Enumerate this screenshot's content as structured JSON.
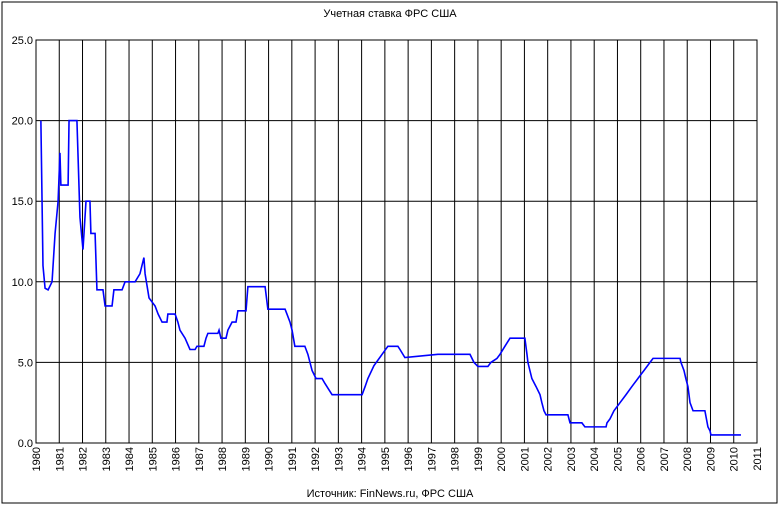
{
  "chart_data": {
    "type": "line",
    "title": "Учетная ставка ФРС США",
    "source": "Источник: FinNews.ru, ФРС США",
    "color": "#0000ff",
    "grid": true,
    "xlim": [
      1980,
      2011
    ],
    "xticks": [
      1980,
      1981,
      1982,
      1983,
      1984,
      1985,
      1986,
      1987,
      1988,
      1989,
      1990,
      1991,
      1992,
      1993,
      1994,
      1995,
      1996,
      1997,
      1998,
      1999,
      2000,
      2001,
      2002,
      2003,
      2004,
      2005,
      2006,
      2007,
      2008,
      2009,
      2010,
      2011
    ],
    "ylim": [
      0,
      25
    ],
    "yticks": [
      {
        "value": 0,
        "label": "0.0"
      },
      {
        "value": 5,
        "label": "5.0"
      },
      {
        "value": 10,
        "label": "10.0"
      },
      {
        "value": 15,
        "label": "15.0"
      },
      {
        "value": 20,
        "label": "20.0"
      },
      {
        "value": 25,
        "label": "25.0"
      }
    ],
    "x": [
      1980.21,
      1980.3,
      1980.39,
      1980.52,
      1980.69,
      1980.82,
      1980.95,
      1981.03,
      1981.07,
      1981.38,
      1981.42,
      1981.76,
      1981.89,
      1982.02,
      1982.15,
      1982.32,
      1982.36,
      1982.54,
      1982.62,
      1982.88,
      1982.97,
      1983.27,
      1983.35,
      1983.7,
      1983.83,
      1984.26,
      1984.47,
      1984.64,
      1984.69,
      1984.86,
      1985.12,
      1985.25,
      1985.42,
      1985.63,
      1985.67,
      1985.98,
      1986.1,
      1986.19,
      1986.41,
      1986.62,
      1986.84,
      1986.92,
      1987.22,
      1987.31,
      1987.39,
      1987.82,
      1987.87,
      1987.95,
      1988.17,
      1988.25,
      1988.43,
      1988.6,
      1988.68,
      1989.03,
      1989.11,
      1989.85,
      1989.97,
      1990.71,
      1990.79,
      1990.92,
      1991.01,
      1991.13,
      1991.56,
      1991.69,
      1991.78,
      1991.87,
      1992.04,
      1992.3,
      1992.42,
      1992.64,
      1992.73,
      1994.02,
      1994.15,
      1994.27,
      1994.53,
      1994.88,
      1995.13,
      1995.56,
      1995.65,
      1995.86,
      1997.28,
      1998.66,
      1998.83,
      1999.0,
      1999.43,
      1999.56,
      1999.82,
      1999.95,
      2000.16,
      2000.38,
      2001.02,
      2001.11,
      2001.15,
      2001.32,
      2001.5,
      2001.67,
      2001.75,
      2001.84,
      2001.93,
      2002.87,
      2002.96,
      2003.47,
      2003.6,
      2004.51,
      2004.55,
      2004.68,
      2004.85,
      2005.11,
      2005.37,
      2005.62,
      2005.88,
      2006.14,
      2006.4,
      2006.53,
      2007.69,
      2007.73,
      2007.86,
      2007.94,
      2008.03,
      2008.12,
      2008.25,
      2008.76,
      2008.89,
      2008.98,
      2009.02,
      2010.31
    ],
    "values": [
      20,
      11,
      9.6,
      9.5,
      10,
      13,
      15,
      18,
      16,
      16,
      20,
      20,
      14,
      12,
      15,
      15,
      13,
      13,
      9.5,
      9.5,
      8.5,
      8.5,
      9.5,
      9.5,
      10,
      10,
      10.5,
      11.5,
      10.5,
      9,
      8.5,
      8,
      7.5,
      7.5,
      8,
      8,
      7.5,
      7,
      6.5,
      5.8,
      5.8,
      6,
      6,
      6.5,
      6.8,
      6.8,
      7,
      6.5,
      6.5,
      7,
      7.5,
      7.5,
      8.2,
      8.2,
      9.7,
      9.7,
      8.3,
      8.3,
      8,
      7.5,
      7,
      6,
      6,
      5.5,
      5,
      4.5,
      4,
      4,
      3.7,
      3.2,
      3,
      3,
      3.5,
      4,
      4.8,
      5.5,
      6,
      6,
      5.8,
      5.3,
      5.5,
      5.5,
      5,
      4.75,
      4.75,
      5,
      5.25,
      5.5,
      6,
      6.5,
      6.5,
      5.5,
      5,
      4,
      3.5,
      3,
      2.5,
      2,
      1.75,
      1.75,
      1.25,
      1.25,
      1,
      1,
      1.25,
      1.5,
      2,
      2.5,
      3,
      3.5,
      4,
      4.5,
      5,
      5.25,
      5.25,
      5,
      4.5,
      4,
      3.5,
      2.5,
      2,
      2,
      1,
      0.75,
      0.5,
      0.5
    ]
  }
}
